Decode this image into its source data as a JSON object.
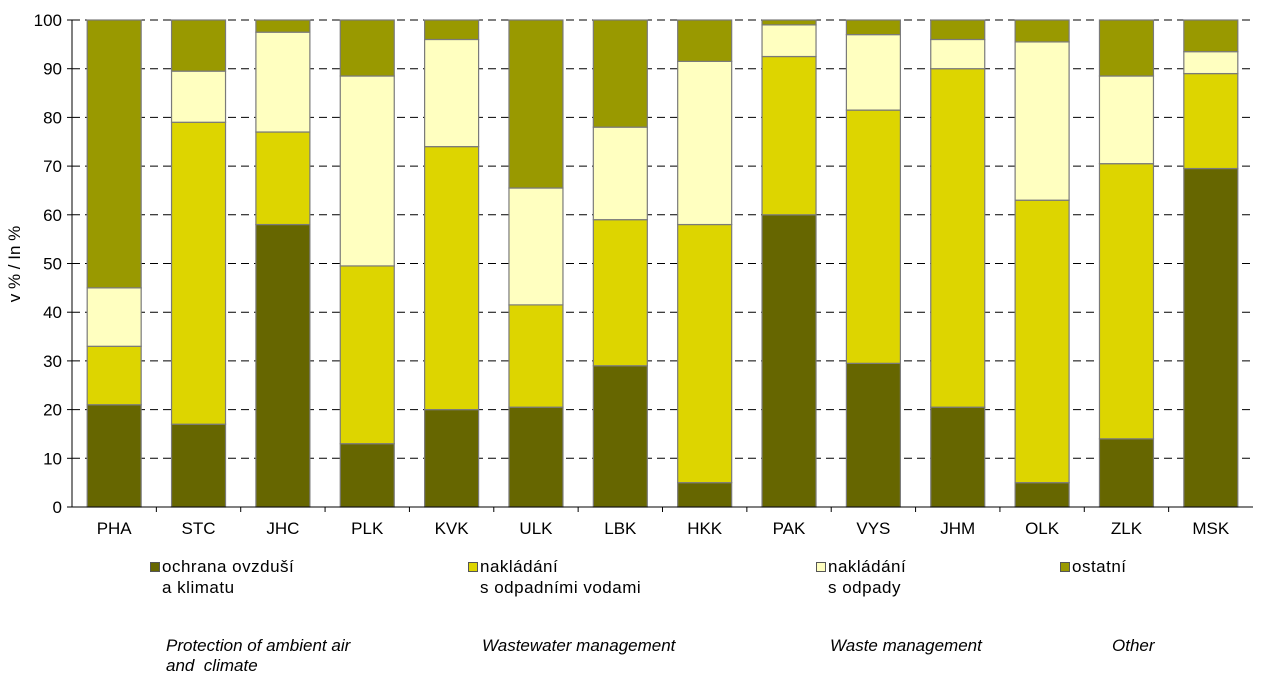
{
  "chart_data": {
    "type": "bar",
    "stacked": true,
    "ylabel": "v % / In %",
    "ylim": [
      0,
      100
    ],
    "yticks": [
      0,
      10,
      20,
      30,
      40,
      50,
      60,
      70,
      80,
      90,
      100
    ],
    "grid": "horizontal dashed",
    "legend_position": "bottom",
    "categories": [
      "PHA",
      "STC",
      "JHC",
      "PLK",
      "KVK",
      "ULK",
      "LBK",
      "HKK",
      "PAK",
      "VYS",
      "JHM",
      "OLK",
      "ZLK",
      "MSK"
    ],
    "series": [
      {
        "name": "ochrana ovzduší a klimatu",
        "name_cz_lines": [
          "ochrana ovzduší",
          "a klimatu"
        ],
        "name_en_lines": [
          "Protection of ambient air",
          "and  climate"
        ],
        "color": "#666600",
        "values": [
          21,
          17,
          58,
          13,
          20,
          20.5,
          29,
          5,
          60,
          29.5,
          20.5,
          5,
          14,
          69.5
        ]
      },
      {
        "name": "nakládání s odpadními vodami",
        "name_cz_lines": [
          "nakládání",
          "s odpadními vodami"
        ],
        "name_en_lines": [
          "Wastewater management"
        ],
        "color": "#DDD500",
        "values": [
          12,
          62,
          19,
          36.5,
          54,
          21,
          30,
          53,
          32.5,
          52,
          69.5,
          58,
          56.5,
          19.5
        ]
      },
      {
        "name": "nakládání s odpady",
        "name_cz_lines": [
          "nakládání",
          "s odpady"
        ],
        "name_en_lines": [
          "Waste management"
        ],
        "color": "#FFFFC0",
        "values": [
          12,
          10.5,
          20.5,
          39,
          22,
          24,
          19,
          33.5,
          6.5,
          15.5,
          6,
          32.5,
          18,
          4.5
        ]
      },
      {
        "name": "ostatní",
        "name_cz_lines": [
          "ostatní"
        ],
        "name_en_lines": [
          "Other"
        ],
        "color": "#999900",
        "values": [
          55,
          10.5,
          2.5,
          11.5,
          4,
          34.5,
          22,
          8.5,
          1,
          3,
          4,
          4.5,
          11.5,
          6.5
        ]
      }
    ]
  }
}
